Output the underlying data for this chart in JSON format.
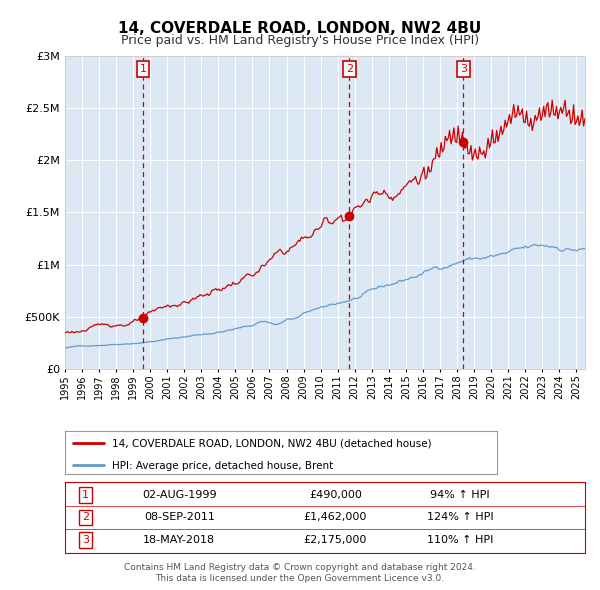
{
  "title": "14, COVERDALE ROAD, LONDON, NW2 4BU",
  "subtitle": "Price paid vs. HM Land Registry's House Price Index (HPI)",
  "legend_red": "14, COVERDALE ROAD, LONDON, NW2 4BU (detached house)",
  "legend_blue": "HPI: Average price, detached house, Brent",
  "footer1": "Contains HM Land Registry data © Crown copyright and database right 2024.",
  "footer2": "This data is licensed under the Open Government Licence v3.0.",
  "sale1_date": "02-AUG-1999",
  "sale1_price": "£490,000",
  "sale1_hpi": "94% ↑ HPI",
  "sale2_date": "08-SEP-2011",
  "sale2_price": "£1,462,000",
  "sale2_hpi": "124% ↑ HPI",
  "sale3_date": "18-MAY-2018",
  "sale3_price": "£2,175,000",
  "sale3_hpi": "110% ↑ HPI",
  "sale1_year": 1999.58,
  "sale2_year": 2011.68,
  "sale3_year": 2018.37,
  "sale1_value": 490000,
  "sale2_value": 1462000,
  "sale3_value": 2175000,
  "year_start": 1995.0,
  "year_end": 2025.5,
  "ymax": 3000000,
  "background_color": "#dce9f5",
  "red_color": "#cc0000",
  "blue_color": "#6699cc",
  "grid_color": "#ffffff"
}
